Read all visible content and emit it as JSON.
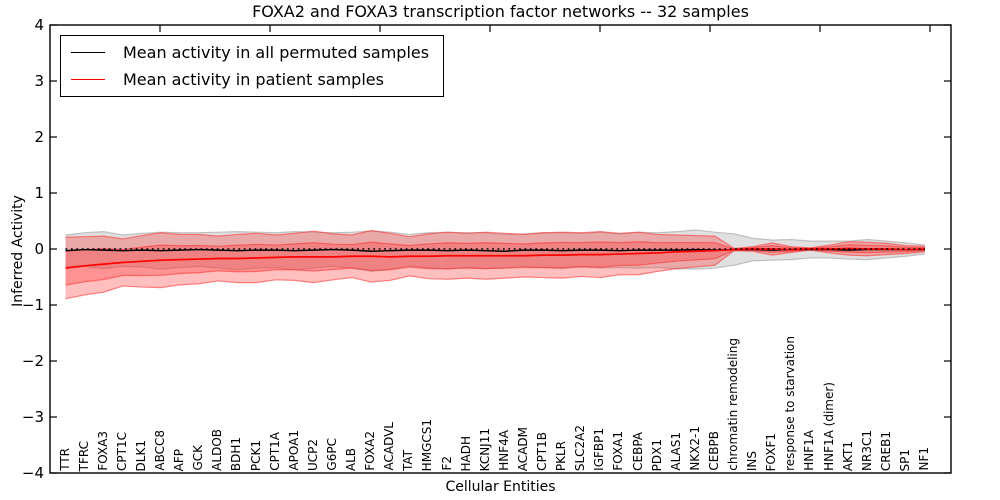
{
  "title": "FOXA2 and FOXA3 transcription factor networks -- 32 samples",
  "legend": {
    "items": [
      {
        "label": "Mean activity in all permuted samples",
        "color": "#000000"
      },
      {
        "label": "Mean activity in patient samples",
        "color": "#ff0000"
      }
    ]
  },
  "chart_data": {
    "type": "line",
    "title": "FOXA2 and FOXA3 transcription factor networks -- 32 samples",
    "xlabel": "Cellular Entities",
    "ylabel": "Inferred Activity",
    "ylim": [
      -4,
      4
    ],
    "ytick_values": [
      4,
      3,
      2,
      1,
      0,
      -1,
      -2,
      -3,
      -4
    ],
    "ytick_labels": [
      "4",
      "3",
      "2",
      "1",
      "0",
      "−1",
      "−2",
      "−3",
      "−4"
    ],
    "grid": false,
    "legend_position": "upper left",
    "zero_line": {
      "y": 0,
      "style": "dotted",
      "color": "#000000"
    },
    "categories": [
      "TTR",
      "TFRC",
      "FOXA3",
      "CPT1C",
      "DLK1",
      "ABCC8",
      "AFP",
      "GCK",
      "ALDOB",
      "BDH1",
      "PCK1",
      "CPT1A",
      "APOA1",
      "UCP2",
      "G6PC",
      "ALB",
      "FOXA2",
      "ACADVL",
      "TAT",
      "HMGCS1",
      "F2",
      "HADH",
      "KCNJ11",
      "HNF4A",
      "ACADM",
      "CPT1B",
      "PKLR",
      "SLC2A2",
      "IGFBP1",
      "FOXA1",
      "CEBPA",
      "PDX1",
      "ALAS1",
      "NKX2-1",
      "CEBPB",
      "chromatin remodeling",
      "INS",
      "FOXF1",
      "response to starvation",
      "HNF1A",
      "HNF1A (dimer)",
      "AKT1",
      "NR3C1",
      "CREB1",
      "SP1",
      "NF1"
    ],
    "series": [
      {
        "name": "Mean activity in all permuted samples",
        "color": "#000000",
        "band_color": "#999999",
        "band_opacity": 0.3,
        "band_levels": [
          1.0
        ],
        "values": [
          -0.03,
          -0.01,
          -0.02,
          -0.03,
          -0.02,
          -0.03,
          -0.02,
          -0.01,
          -0.02,
          -0.03,
          -0.02,
          -0.02,
          -0.03,
          -0.02,
          -0.01,
          -0.02,
          -0.04,
          -0.03,
          -0.02,
          -0.02,
          -0.03,
          -0.02,
          -0.03,
          -0.04,
          -0.02,
          -0.02,
          -0.03,
          -0.02,
          -0.02,
          -0.03,
          -0.02,
          -0.02,
          -0.02,
          -0.01,
          -0.02,
          -0.01,
          -0.01,
          -0.02,
          -0.01,
          -0.01,
          -0.01,
          -0.02,
          -0.01,
          -0.01,
          -0.01,
          -0.01
        ],
        "band_halfwidth": [
          0.28,
          0.3,
          0.33,
          0.28,
          0.3,
          0.33,
          0.31,
          0.3,
          0.32,
          0.34,
          0.32,
          0.31,
          0.34,
          0.32,
          0.3,
          0.32,
          0.36,
          0.33,
          0.28,
          0.31,
          0.33,
          0.31,
          0.32,
          0.3,
          0.29,
          0.31,
          0.32,
          0.3,
          0.32,
          0.3,
          0.32,
          0.31,
          0.33,
          0.35,
          0.32,
          0.28,
          0.2,
          0.18,
          0.18,
          0.15,
          0.15,
          0.16,
          0.18,
          0.15,
          0.12,
          0.08
        ]
      },
      {
        "name": "Mean activity in patient samples",
        "color": "#ff0000",
        "band_color": "#ff2a2a",
        "band_opacity": 0.3,
        "band_levels": [
          1.0,
          0.55
        ],
        "values": [
          -0.34,
          -0.3,
          -0.27,
          -0.24,
          -0.22,
          -0.2,
          -0.19,
          -0.18,
          -0.17,
          -0.17,
          -0.16,
          -0.15,
          -0.14,
          -0.14,
          -0.14,
          -0.13,
          -0.13,
          -0.14,
          -0.13,
          -0.13,
          -0.12,
          -0.12,
          -0.12,
          -0.12,
          -0.12,
          -0.11,
          -0.11,
          -0.1,
          -0.1,
          -0.09,
          -0.08,
          -0.07,
          -0.05,
          -0.04,
          -0.03,
          -0.01,
          0.0,
          0.0,
          -0.01,
          0.0,
          0.0,
          0.01,
          0.0,
          0.0,
          -0.01,
          0.0
        ],
        "band_halfwidth": [
          0.55,
          0.52,
          0.5,
          0.42,
          0.46,
          0.49,
          0.45,
          0.44,
          0.4,
          0.43,
          0.44,
          0.4,
          0.42,
          0.46,
          0.41,
          0.38,
          0.46,
          0.42,
          0.35,
          0.4,
          0.42,
          0.4,
          0.42,
          0.4,
          0.38,
          0.4,
          0.41,
          0.39,
          0.41,
          0.37,
          0.38,
          0.33,
          0.3,
          0.28,
          0.26,
          0.02,
          0.04,
          0.11,
          0.05,
          0.02,
          0.07,
          0.12,
          0.12,
          0.1,
          0.07,
          0.05
        ]
      }
    ]
  }
}
